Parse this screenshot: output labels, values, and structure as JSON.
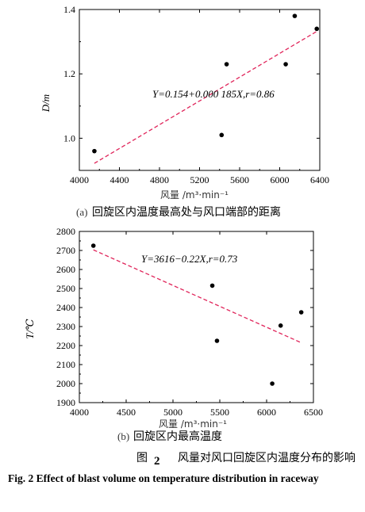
{
  "chart_data": [
    {
      "type": "scatter",
      "xlabel": "风量 /m³·min⁻¹",
      "ylabel": "D/m",
      "xlim": [
        4000,
        6400
      ],
      "ylim": [
        0.9,
        1.4
      ],
      "xticks": [
        "4000",
        "4400",
        "4800",
        "5200",
        "5600",
        "6000",
        "6400"
      ],
      "yticks": [
        "1.0",
        "1.2",
        "1.4"
      ],
      "series": [
        {
          "x": [
            4150,
            5420,
            5470,
            6060,
            6150,
            6370
          ],
          "y": [
            0.96,
            1.01,
            1.23,
            1.23,
            1.38,
            1.34
          ]
        }
      ],
      "fit": {
        "x": [
          4150,
          6370
        ],
        "y": [
          0.922,
          1.332
        ],
        "style": "dashed",
        "color": "#e0245a"
      },
      "annotation": "Y=0.154+0.000 185X,r=0.86",
      "subcaption_mark": "(a)",
      "subcaption": "回旋区内温度最高处与风口端部的距离"
    },
    {
      "type": "scatter",
      "xlabel": "风量 /m³·min⁻¹",
      "ylabel": "T/℃",
      "xlim": [
        4000,
        6500
      ],
      "ylim": [
        1900,
        2800
      ],
      "xticks": [
        "4000",
        "4500",
        "5000",
        "5500",
        "6000",
        "6500"
      ],
      "yticks": [
        "1900",
        "2000",
        "2100",
        "2200",
        "2300",
        "2400",
        "2500",
        "2600",
        "2700",
        "2800"
      ],
      "series": [
        {
          "x": [
            4150,
            5420,
            5470,
            6060,
            6150,
            6370
          ],
          "y": [
            2725,
            2515,
            2225,
            2000,
            2305,
            2375
          ]
        }
      ],
      "fit": {
        "x": [
          4150,
          6370
        ],
        "y": [
          2703,
          2215
        ],
        "style": "dashed",
        "color": "#e0245a"
      },
      "annotation": "Y=3616−0.22X,r=0.73",
      "subcaption_mark": "(b)",
      "subcaption": "回旋区内最高温度"
    }
  ],
  "figure": {
    "label_cn": "图",
    "number": "2",
    "caption_cn": "风量对风口回旋区内温度分布的影响",
    "caption_en": "Fig. 2 Effect of blast volume on temperature distribution in raceway"
  }
}
